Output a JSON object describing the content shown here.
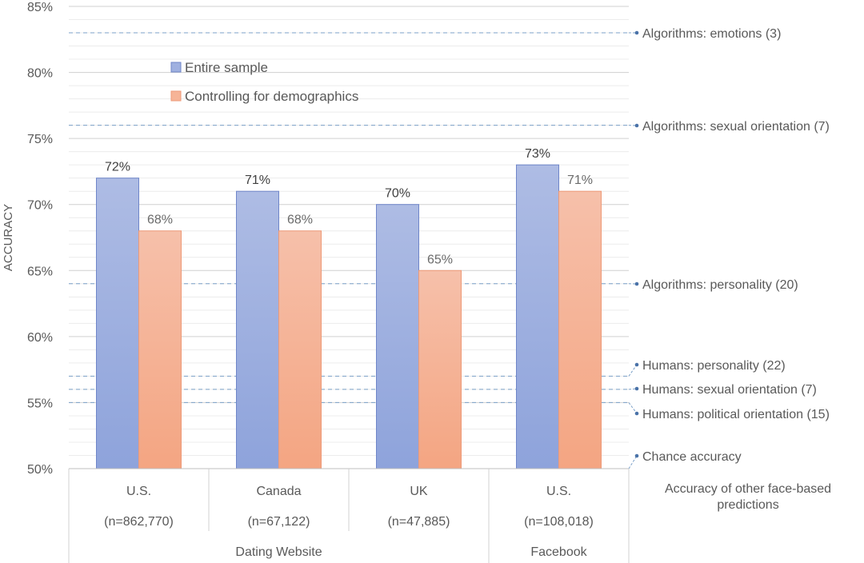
{
  "chart_data": {
    "type": "bar",
    "ylabel": "ACCURACY",
    "ylim": [
      50,
      85
    ],
    "y_ticks": [
      "50%",
      "55%",
      "60%",
      "65%",
      "70%",
      "75%",
      "80%",
      "85%"
    ],
    "y_tick_values": [
      50,
      55,
      60,
      65,
      70,
      75,
      80,
      85
    ],
    "grid": true,
    "legend_position": "top-left",
    "colors": {
      "entire": "#8ea3db",
      "controlling": "#f4a582",
      "reference_line": "#7ba0c8",
      "grid": "#d9d9d9",
      "text": "#595959"
    },
    "categories": [
      {
        "country": "U.S.",
        "n": "(n=862,770)"
      },
      {
        "country": "Canada",
        "n": "(n=67,122)"
      },
      {
        "country": "UK",
        "n": "(n=47,885)"
      },
      {
        "country": "U.S.",
        "n": "(n=108,018)"
      }
    ],
    "groups": [
      {
        "label": "Dating Website",
        "span": [
          0,
          2
        ]
      },
      {
        "label": "Facebook",
        "span": [
          3,
          3
        ]
      }
    ],
    "series": [
      {
        "name": "Entire sample",
        "values": [
          72,
          71,
          70,
          73
        ],
        "labels": [
          "72%",
          "71%",
          "70%",
          "73%"
        ]
      },
      {
        "name": "Controlling for demographics",
        "values": [
          68,
          68,
          65,
          71
        ],
        "labels": [
          "68%",
          "68%",
          "65%",
          "71%"
        ]
      }
    ],
    "reference_lines": [
      {
        "label": "Algorithms: emotions (3)",
        "value": 83
      },
      {
        "label": "Algorithms: sexual orientation (7)",
        "value": 76
      },
      {
        "label": "Algorithms: personality (20)",
        "value": 64
      },
      {
        "label": "Humans: personality (22)",
        "value": 57
      },
      {
        "label": "Humans: sexual orientation (7)",
        "value": 56
      },
      {
        "label": "Humans: political orientation (15)",
        "value": 55
      },
      {
        "label": "Chance accuracy",
        "value": 50
      }
    ],
    "side_caption": "Accuracy of other face-based predictions"
  }
}
